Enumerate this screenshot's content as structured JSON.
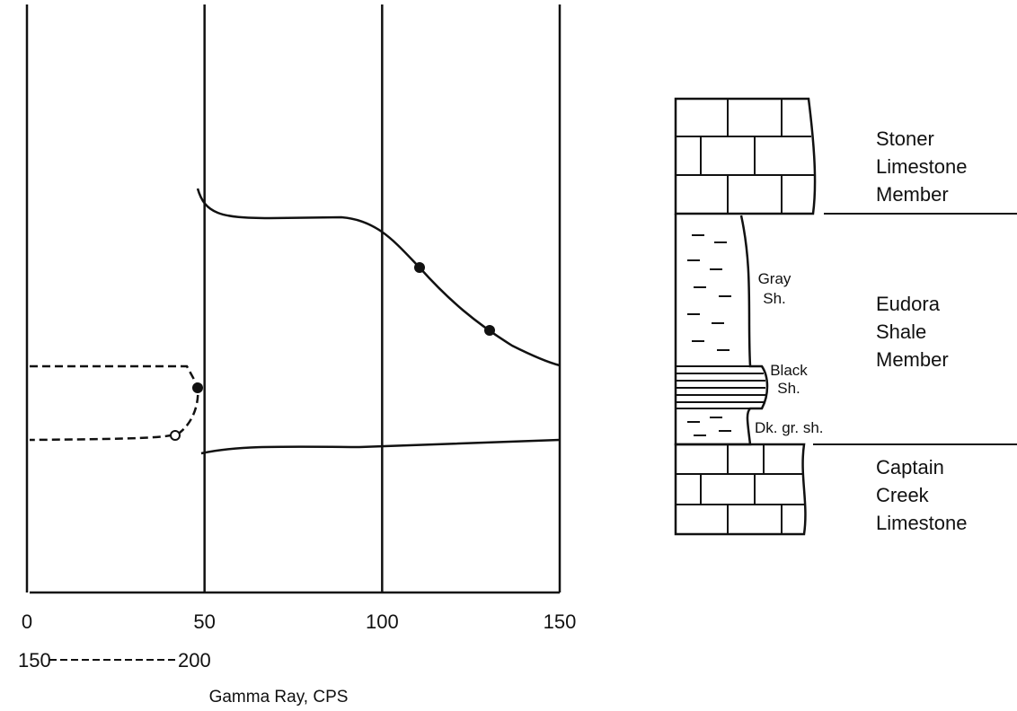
{
  "gamma_log": {
    "scale_ticks": [
      0,
      50,
      100,
      150
    ],
    "overlay_scale": {
      "start": 150,
      "end": 200
    },
    "axis_label": "Gamma Ray, CPS"
  },
  "column": {
    "lithology_labels": [
      [
        "Gray",
        "Sh."
      ],
      [
        "Black",
        "Sh."
      ],
      [
        "Dk. gr. sh."
      ]
    ],
    "unit_labels": [
      [
        "Stoner",
        "Limestone",
        "Member"
      ],
      [
        "Eudora",
        "Shale",
        "Member"
      ],
      [
        "Captain",
        "Creek",
        "Limestone"
      ]
    ]
  }
}
